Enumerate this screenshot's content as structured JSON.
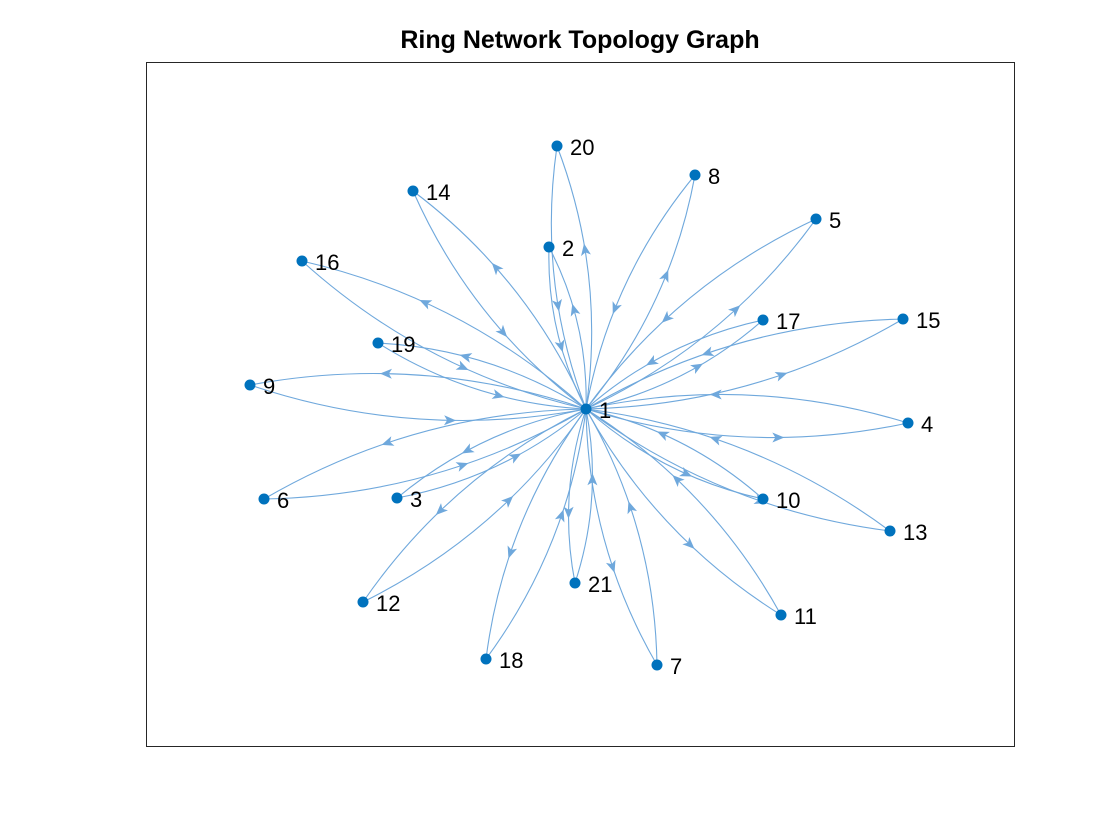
{
  "figure": {
    "title": "Ring Network Topology Graph",
    "type": "directed-graph",
    "colors": {
      "node": "#0072BD",
      "edge": "#6FA8DC",
      "axes": "#262626",
      "label": "#000000"
    }
  },
  "graph": {
    "hub": "1",
    "nodes": [
      "1",
      "2",
      "3",
      "4",
      "5",
      "6",
      "7",
      "8",
      "9",
      "10",
      "11",
      "12",
      "13",
      "14",
      "15",
      "16",
      "17",
      "18",
      "19",
      "20",
      "21"
    ],
    "edges": [
      {
        "from": "1",
        "to": "2"
      },
      {
        "from": "2",
        "to": "1"
      },
      {
        "from": "1",
        "to": "3"
      },
      {
        "from": "3",
        "to": "1"
      },
      {
        "from": "1",
        "to": "4"
      },
      {
        "from": "4",
        "to": "1"
      },
      {
        "from": "1",
        "to": "5"
      },
      {
        "from": "5",
        "to": "1"
      },
      {
        "from": "1",
        "to": "6"
      },
      {
        "from": "6",
        "to": "1"
      },
      {
        "from": "1",
        "to": "7"
      },
      {
        "from": "7",
        "to": "1"
      },
      {
        "from": "1",
        "to": "8"
      },
      {
        "from": "8",
        "to": "1"
      },
      {
        "from": "1",
        "to": "9"
      },
      {
        "from": "9",
        "to": "1"
      },
      {
        "from": "1",
        "to": "10"
      },
      {
        "from": "10",
        "to": "1"
      },
      {
        "from": "1",
        "to": "11"
      },
      {
        "from": "11",
        "to": "1"
      },
      {
        "from": "1",
        "to": "12"
      },
      {
        "from": "12",
        "to": "1"
      },
      {
        "from": "1",
        "to": "13"
      },
      {
        "from": "13",
        "to": "1"
      },
      {
        "from": "1",
        "to": "14"
      },
      {
        "from": "14",
        "to": "1"
      },
      {
        "from": "1",
        "to": "15"
      },
      {
        "from": "15",
        "to": "1"
      },
      {
        "from": "1",
        "to": "16"
      },
      {
        "from": "16",
        "to": "1"
      },
      {
        "from": "1",
        "to": "17"
      },
      {
        "from": "17",
        "to": "1"
      },
      {
        "from": "1",
        "to": "18"
      },
      {
        "from": "18",
        "to": "1"
      },
      {
        "from": "1",
        "to": "19"
      },
      {
        "from": "19",
        "to": "1"
      },
      {
        "from": "1",
        "to": "20"
      },
      {
        "from": "20",
        "to": "1"
      },
      {
        "from": "1",
        "to": "21"
      },
      {
        "from": "21",
        "to": "1"
      }
    ]
  }
}
